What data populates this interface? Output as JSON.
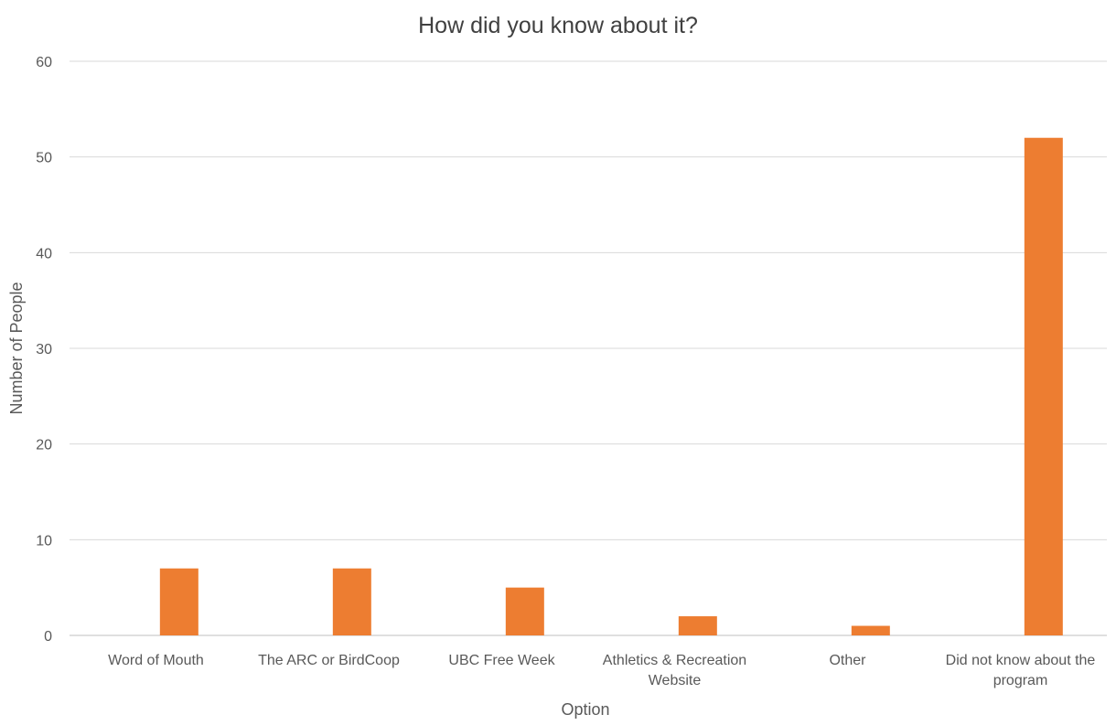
{
  "chart_data": {
    "type": "bar",
    "title": "How did you know about it?",
    "xlabel": "Option",
    "ylabel": "Number of People",
    "categories": [
      "Word of Mouth",
      "The ARC or BirdCoop",
      "UBC Free Week",
      "Athletics & Recreation Website",
      "Other",
      "Did not know about the program"
    ],
    "values": [
      7,
      7,
      5,
      2,
      1,
      52
    ],
    "ylim": [
      0,
      60
    ],
    "yticks": [
      0,
      10,
      20,
      30,
      40,
      50,
      60
    ],
    "grid": true,
    "legend": "none",
    "bar_color": "#ED7D31"
  }
}
